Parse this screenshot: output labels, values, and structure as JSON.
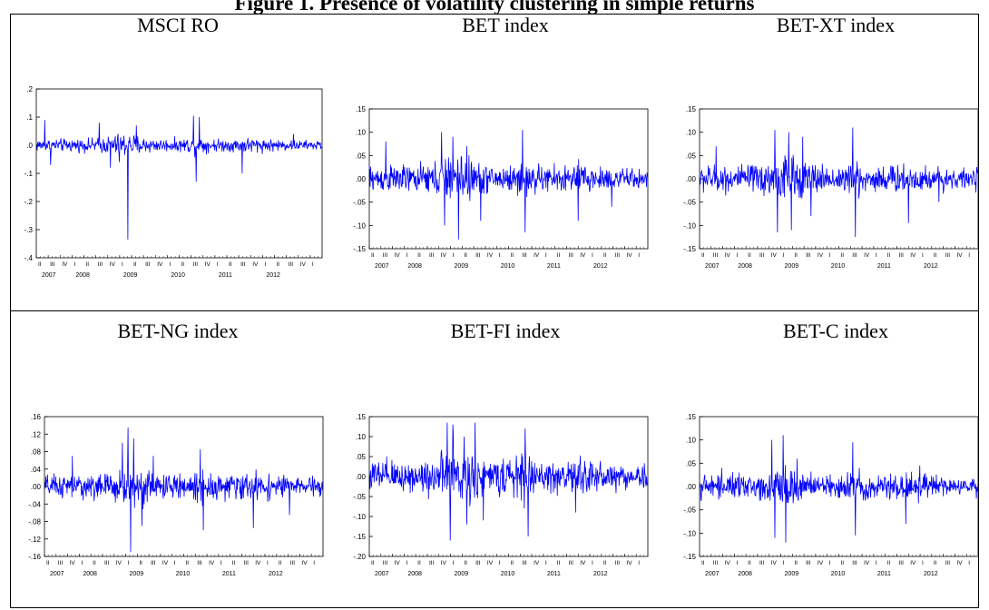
{
  "figure": {
    "title": "Figure 1. Presence of volatility clustering in simple returns"
  },
  "colors": {
    "series": "#0000ff",
    "frame": "#000000"
  },
  "quarter_labels": [
    "II",
    "III",
    "IV",
    "I",
    "II",
    "III",
    "IV",
    "I",
    "II",
    "III",
    "IV",
    "I",
    "II",
    "III",
    "IV",
    "I",
    "II",
    "III",
    "IV",
    "I",
    "II",
    "III",
    "IV",
    "I"
  ],
  "year_labels": [
    "2007",
    "2008",
    "2009",
    "2010",
    "2011",
    "2012"
  ],
  "chart_data": [
    {
      "type": "line",
      "title": "MSCI RO",
      "ylim": [
        -0.4,
        0.2
      ],
      "yticks": [
        0.2,
        0.1,
        0.0,
        -0.1,
        -0.2,
        -0.3,
        -0.4
      ],
      "ytick_labels": [
        ".2",
        ".1",
        ".0",
        "-.1",
        "-.2",
        "-.3",
        "-.4"
      ],
      "x_range": [
        "2007-II",
        "2013-I"
      ],
      "grid": false,
      "base_sigma": 0.011,
      "spikes": [
        [
          0.03,
          0.09
        ],
        [
          0.05,
          -0.07
        ],
        [
          0.22,
          0.08
        ],
        [
          0.26,
          -0.08
        ],
        [
          0.29,
          -0.06
        ],
        [
          0.32,
          -0.335
        ],
        [
          0.35,
          0.07
        ],
        [
          0.55,
          0.105
        ],
        [
          0.57,
          0.1
        ],
        [
          0.56,
          -0.13
        ],
        [
          0.72,
          -0.1
        ],
        [
          0.9,
          0.04
        ]
      ]
    },
    {
      "type": "line",
      "title": "BET index",
      "ylim": [
        -0.15,
        0.15
      ],
      "yticks": [
        0.15,
        0.1,
        0.05,
        0.0,
        -0.05,
        -0.1,
        -0.15
      ],
      "ytick_labels": [
        ".15",
        ".10",
        ".05",
        ".00",
        "-.05",
        "-.10",
        "-.15"
      ],
      "x_range": [
        "2007-II",
        "2013-I"
      ],
      "grid": false,
      "base_sigma": 0.014,
      "spikes": [
        [
          0.06,
          0.08
        ],
        [
          0.26,
          0.1
        ],
        [
          0.27,
          -0.1
        ],
        [
          0.3,
          0.09
        ],
        [
          0.32,
          -0.13
        ],
        [
          0.35,
          0.07
        ],
        [
          0.4,
          -0.09
        ],
        [
          0.55,
          0.105
        ],
        [
          0.56,
          -0.115
        ],
        [
          0.75,
          -0.09
        ],
        [
          0.87,
          -0.06
        ]
      ]
    },
    {
      "type": "line",
      "title": "BET-XT index",
      "ylim": [
        -0.15,
        0.15
      ],
      "yticks": [
        0.15,
        0.1,
        0.05,
        0.0,
        -0.05,
        -0.1,
        -0.15
      ],
      "ytick_labels": [
        ".15",
        ".10",
        ".05",
        ".00",
        "-.05",
        "-.10",
        "-.15"
      ],
      "x_range": [
        "2007-II",
        "2013-I"
      ],
      "grid": false,
      "base_sigma": 0.014,
      "spikes": [
        [
          0.06,
          0.07
        ],
        [
          0.27,
          0.105
        ],
        [
          0.28,
          -0.115
        ],
        [
          0.32,
          0.1
        ],
        [
          0.33,
          -0.11
        ],
        [
          0.37,
          0.09
        ],
        [
          0.4,
          -0.08
        ],
        [
          0.55,
          0.11
        ],
        [
          0.56,
          -0.125
        ],
        [
          0.75,
          -0.095
        ],
        [
          0.86,
          -0.05
        ]
      ]
    },
    {
      "type": "line",
      "title": "BET-NG index",
      "ylim": [
        -0.16,
        0.16
      ],
      "yticks": [
        0.16,
        0.12,
        0.08,
        0.04,
        0.0,
        -0.04,
        -0.08,
        -0.12,
        -0.16
      ],
      "ytick_labels": [
        ".16",
        ".12",
        ".08",
        ".04",
        ".00",
        "-.04",
        "-.08",
        "-.12",
        "-.16"
      ],
      "x_range": [
        "2007-II",
        "2013-I"
      ],
      "grid": false,
      "base_sigma": 0.013,
      "spikes": [
        [
          0.1,
          0.07
        ],
        [
          0.28,
          0.1
        ],
        [
          0.3,
          0.135
        ],
        [
          0.31,
          -0.15
        ],
        [
          0.32,
          0.11
        ],
        [
          0.35,
          -0.09
        ],
        [
          0.39,
          0.07
        ],
        [
          0.56,
          0.085
        ],
        [
          0.57,
          -0.1
        ],
        [
          0.75,
          -0.095
        ],
        [
          0.88,
          -0.065
        ]
      ]
    },
    {
      "type": "line",
      "title": "BET-FI index",
      "ylim": [
        -0.2,
        0.15
      ],
      "yticks": [
        0.15,
        0.1,
        0.05,
        0.0,
        -0.05,
        -0.1,
        -0.15,
        -0.2
      ],
      "ytick_labels": [
        ".15",
        ".10",
        ".05",
        ".00",
        "-.05",
        "-.10",
        "-.15",
        "-.20"
      ],
      "x_range": [
        "2007-II",
        "2013-I"
      ],
      "grid": false,
      "base_sigma": 0.02,
      "spikes": [
        [
          0.28,
          0.135
        ],
        [
          0.29,
          -0.16
        ],
        [
          0.3,
          0.13
        ],
        [
          0.34,
          0.1
        ],
        [
          0.35,
          -0.12
        ],
        [
          0.38,
          0.135
        ],
        [
          0.41,
          -0.11
        ],
        [
          0.56,
          0.12
        ],
        [
          0.57,
          -0.15
        ],
        [
          0.74,
          -0.09
        ]
      ]
    },
    {
      "type": "line",
      "title": "BET-C index",
      "ylim": [
        -0.15,
        0.15
      ],
      "yticks": [
        0.15,
        0.1,
        0.05,
        0.0,
        -0.05,
        -0.1,
        -0.15
      ],
      "ytick_labels": [
        ".15",
        ".10",
        ".05",
        ".00",
        "-.05",
        "-.10",
        "-.15"
      ],
      "x_range": [
        "2007-II",
        "2013-I"
      ],
      "grid": false,
      "base_sigma": 0.012,
      "spikes": [
        [
          0.08,
          0.04
        ],
        [
          0.26,
          0.1
        ],
        [
          0.27,
          -0.11
        ],
        [
          0.3,
          0.11
        ],
        [
          0.31,
          -0.12
        ],
        [
          0.35,
          0.06
        ],
        [
          0.55,
          0.095
        ],
        [
          0.56,
          -0.105
        ],
        [
          0.74,
          -0.08
        ],
        [
          0.79,
          0.045
        ]
      ]
    }
  ]
}
